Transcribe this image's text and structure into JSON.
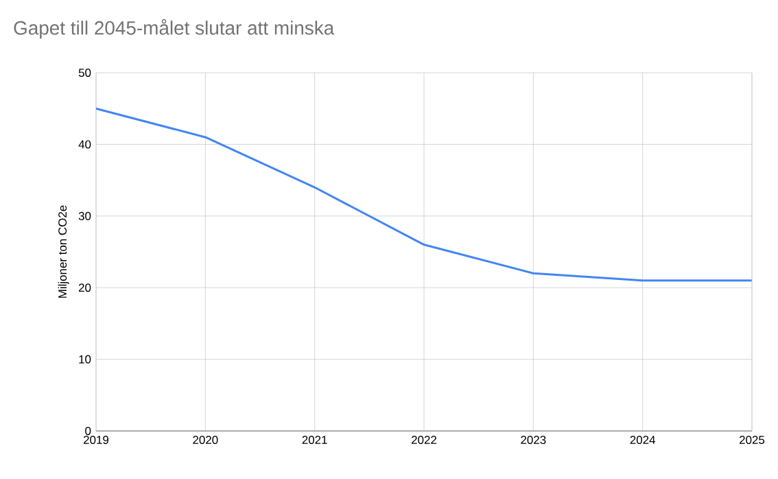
{
  "chart_data": {
    "type": "line",
    "title": "Gapet till 2045-målet slutar att minska",
    "ylabel": "Miljoner ton CO2e",
    "x": [
      2019,
      2020,
      2021,
      2022,
      2023,
      2024,
      2025
    ],
    "series": [
      {
        "color": "#4285f4",
        "values": [
          45,
          41,
          34,
          26,
          22,
          21,
          21
        ]
      }
    ],
    "xlim": [
      2019,
      2025
    ],
    "ylim": [
      0,
      50
    ],
    "xticks": [
      2019,
      2020,
      2021,
      2022,
      2023,
      2024,
      2025
    ],
    "yticks": [
      0,
      10,
      20,
      30,
      40,
      50
    ],
    "grid": true
  }
}
